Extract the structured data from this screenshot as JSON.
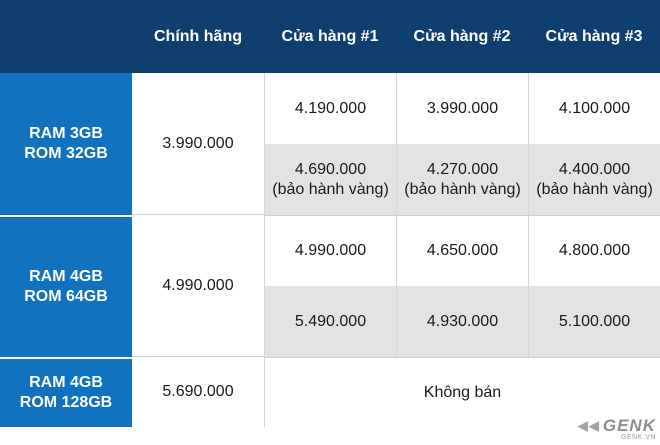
{
  "header": {
    "corner": "",
    "cols": [
      "Chính hãng",
      "Cửa hàng #1",
      "Cửa hàng #2",
      "Cửa hàng #3"
    ]
  },
  "rows": [
    {
      "label_line1": "RAM 3GB",
      "label_line2": "ROM 32GB",
      "official": "3.990.000",
      "standard": [
        "4.190.000",
        "3.990.000",
        "4.100.000"
      ],
      "gold": [
        "4.690.000",
        "4.270.000",
        "4.400.000"
      ],
      "gold_note": "(bảo hành vàng)"
    },
    {
      "label_line1": "RAM 4GB",
      "label_line2": "ROM 64GB",
      "official": "4.990.000",
      "standard": [
        "4.990.000",
        "4.650.000",
        "4.800.000"
      ],
      "gold": [
        "5.490.000",
        "4.930.000",
        "5.100.000"
      ]
    },
    {
      "label_line1": "RAM 4GB",
      "label_line2": "ROM 128GB",
      "official": "5.690.000",
      "not_sold": "Không bán"
    }
  ],
  "watermark": {
    "brand": "GENK",
    "site": "GENK.VN"
  },
  "colors": {
    "header_bg": "#0f3f6e",
    "rowhead_bg": "#1172c0",
    "grey_bg": "#e3e3e4",
    "text": "#1a1a1a"
  }
}
